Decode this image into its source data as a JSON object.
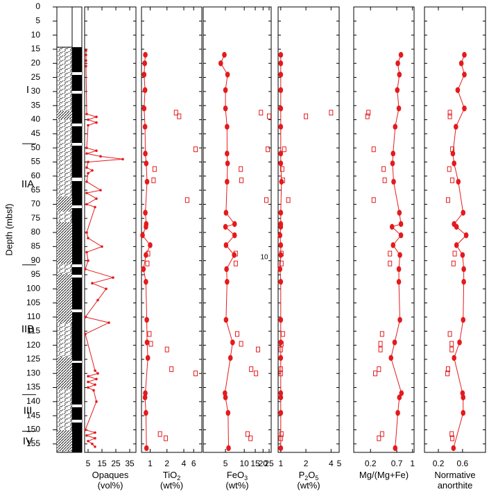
{
  "depth_axis": {
    "label": "Depth (mbsf)",
    "ylim": [
      0,
      158
    ],
    "yticks": [
      0,
      5,
      10,
      15,
      20,
      25,
      30,
      35,
      40,
      45,
      50,
      55,
      60,
      65,
      70,
      75,
      80,
      85,
      90,
      95,
      100,
      105,
      110,
      115,
      120,
      125,
      130,
      135,
      140,
      145,
      150,
      155
    ]
  },
  "units": [
    {
      "label": "I",
      "depth": 29.5
    },
    {
      "label": "IIA",
      "depth": 63
    },
    {
      "label": "IIB",
      "depth": 114.4
    },
    {
      "label": "III",
      "depth": 143.4
    },
    {
      "label": "IV",
      "depth": 154.2
    }
  ],
  "unit_boundaries": [
    48.5,
    91.5,
    137.5,
    150.5
  ],
  "annotation": "10",
  "chart_data": [
    {
      "type": "profile",
      "xlabel": [
        [
          {
            "text": "Opaques"
          }
        ],
        [
          {
            "text": "(vol%)"
          }
        ]
      ],
      "xlim": [
        2.5,
        39.5
      ],
      "xticks": [
        5,
        15,
        25,
        35
      ],
      "log": false,
      "series": [
        {
          "color": "#e41a1c",
          "marker": "dot",
          "connected": true,
          "depths": [
            15.5,
            17,
            19,
            21,
            38,
            39,
            40,
            41,
            42,
            50,
            51,
            52,
            53,
            54,
            55,
            57,
            58,
            59,
            62,
            65,
            66,
            68,
            70,
            71,
            80,
            82,
            85,
            87,
            90,
            93,
            96,
            98,
            100,
            104,
            110,
            112,
            116,
            129,
            130,
            131,
            132,
            133,
            134,
            135,
            136,
            140,
            150,
            151,
            152,
            153,
            154,
            155,
            156
          ],
          "values": [
            3.5,
            3.5,
            3.5,
            3.5,
            4,
            11,
            5,
            11,
            5,
            4,
            11,
            4,
            14,
            30,
            5,
            4,
            8,
            5,
            4,
            14,
            4,
            11,
            4,
            10,
            4,
            5,
            15,
            4,
            5,
            3,
            23,
            8,
            18,
            12,
            3,
            20,
            3,
            10,
            12,
            5,
            11,
            5,
            10,
            5,
            9,
            11,
            3,
            10,
            4,
            10,
            5,
            8,
            10
          ]
        }
      ]
    },
    {
      "type": "profile",
      "xlabel": [
        [
          {
            "text": "TiO"
          },
          {
            "text": "2",
            "sub": true
          }
        ],
        [
          {
            "text": "(wt%)"
          }
        ]
      ],
      "xlim": [
        0.7,
        8.4
      ],
      "xticks": [
        1,
        2,
        4,
        6
      ],
      "log": true,
      "series": [
        {
          "color": "#e41a1c",
          "marker": "circle",
          "connected": true,
          "depths": [
            17,
            20,
            24,
            29.5,
            36,
            42.5,
            52,
            55.5,
            62,
            73,
            77,
            78,
            81,
            84.5,
            88,
            93,
            97.5,
            111,
            119,
            124.5,
            137,
            138.5,
            144,
            156.5
          ],
          "values": [
            0.82,
            0.8,
            0.78,
            0.81,
            0.78,
            0.81,
            0.82,
            0.85,
            0.88,
            0.82,
            0.85,
            0.84,
            0.73,
            1.0,
            0.84,
            0.76,
            0.84,
            0.87,
            0.88,
            0.91,
            0.82,
            0.81,
            0.84,
            0.86
          ]
        },
        {
          "color": "#e41a1c",
          "marker": "square",
          "connected": false,
          "depths": [
            37.5,
            38.8,
            50.5,
            57.5,
            61.5,
            68.5,
            87.5,
            91,
            116,
            119.5,
            121.5,
            128.5,
            130,
            151.5,
            153
          ],
          "values": [
            2.9,
            3.3,
            6.5,
            1.2,
            1.15,
            4.6,
            0.92,
            0.89,
            0.97,
            1.03,
            2.0,
            2.4,
            6.5,
            1.5,
            1.9
          ]
        }
      ]
    },
    {
      "type": "profile",
      "xlabel": [
        [
          {
            "text": "FeO"
          },
          {
            "text": "3",
            "sub": true
          }
        ],
        [
          {
            "text": "(wt%)"
          }
        ]
      ],
      "xlim": [
        2.2,
        27
      ],
      "xticks": [
        5,
        10,
        15,
        20,
        25
      ],
      "log": true,
      "series": [
        {
          "color": "#e41a1c",
          "marker": "circle",
          "connected": true,
          "depths": [
            17,
            20,
            24,
            29.5,
            36,
            42.5,
            52,
            55.5,
            62,
            73,
            77,
            78,
            81,
            84.5,
            88,
            93,
            97.5,
            111,
            119,
            124.5,
            137,
            138.5,
            144,
            156.5
          ],
          "values": [
            4.8,
            4.2,
            5.4,
            5.0,
            5.0,
            5.3,
            5.3,
            5.4,
            5.3,
            5.1,
            7.0,
            5.0,
            7.0,
            5.1,
            6.9,
            5.2,
            5.3,
            5.1,
            6.5,
            6.0,
            4.9,
            5.0,
            5.5,
            5.6
          ]
        },
        {
          "color": "#e41a1c",
          "marker": "square",
          "connected": false,
          "depths": [
            37.5,
            38.8,
            50.5,
            57.5,
            61.5,
            68.5,
            87.5,
            91,
            116,
            119.5,
            121.5,
            128.5,
            130,
            151.5,
            153
          ],
          "values": [
            18.5,
            25,
            23.8,
            8.8,
            9.0,
            22.6,
            7.3,
            7.3,
            7.7,
            8.9,
            16.6,
            12.9,
            15.4,
            11.3,
            12.6
          ]
        }
      ]
    },
    {
      "type": "profile",
      "xlabel": [
        [
          {
            "text": "P"
          },
          {
            "text": "2",
            "sub": true
          },
          {
            "text": "O"
          },
          {
            "text": "5",
            "sub": true
          }
        ],
        [
          {
            "text": "(wt%)"
          }
        ]
      ],
      "xlim": [
        0.93,
        5.0
      ],
      "xticks": [
        1,
        2,
        4,
        5
      ],
      "log": true,
      "series": [
        {
          "color": "#e41a1c",
          "marker": "circle",
          "connected": true,
          "depths": [
            17,
            20,
            24,
            29.5,
            36,
            42.5,
            52,
            55.5,
            62,
            73,
            77,
            78,
            81,
            84.5,
            88,
            93,
            97.5,
            111,
            119,
            124.5,
            137,
            138.5,
            144,
            156.5
          ],
          "values": [
            1.0,
            1.0,
            1.0,
            1.0,
            1.0,
            1.0,
            1.0,
            1.0,
            1.02,
            1.0,
            1.0,
            1.0,
            0.98,
            1.0,
            1.0,
            0.98,
            1.0,
            1.0,
            1.0,
            1.0,
            1.0,
            1.0,
            1.0,
            1.0
          ]
        },
        {
          "color": "#e41a1c",
          "marker": "square",
          "connected": false,
          "depths": [
            37.5,
            38.8,
            50.5,
            57.5,
            61.5,
            68.5,
            87.5,
            91,
            116,
            119.5,
            121.5,
            128.5,
            130,
            151.5,
            153
          ],
          "values": [
            4.0,
            2.0,
            1.1,
            1.04,
            1.06,
            1.23,
            1.02,
            1.02,
            1.06,
            1.02,
            1.0,
            1.0,
            1.0,
            1.02,
            1.0
          ]
        }
      ]
    },
    {
      "type": "profile",
      "xlabel": [
        [
          {
            "text": "Mg/(Mg+Fe)"
          }
        ]
      ],
      "xlim": [
        -0.12,
        1.03
      ],
      "xticks": [
        0.2,
        0.7,
        1
      ],
      "log": false,
      "series": [
        {
          "color": "#e41a1c",
          "marker": "circle",
          "connected": true,
          "depths": [
            17,
            20,
            24,
            29.5,
            36,
            42.5,
            52,
            55.5,
            62,
            73,
            77,
            78,
            81,
            84.5,
            88,
            93,
            97.5,
            111,
            119,
            124.5,
            137,
            138.5,
            144,
            156.5
          ],
          "values": [
            0.78,
            0.72,
            0.75,
            0.71,
            0.74,
            0.67,
            0.63,
            0.62,
            0.64,
            0.75,
            0.78,
            0.61,
            0.78,
            0.63,
            0.76,
            0.74,
            0.74,
            0.76,
            0.66,
            0.59,
            0.79,
            0.75,
            0.72,
            0.67
          ]
        },
        {
          "color": "#e41a1c",
          "marker": "square",
          "connected": false,
          "depths": [
            37.5,
            38.8,
            50.5,
            57.5,
            61.5,
            68.5,
            87.5,
            91,
            116,
            119.5,
            121.5,
            128.5,
            130,
            151.5,
            153
          ],
          "values": [
            0.16,
            0.14,
            0.26,
            0.45,
            0.47,
            0.26,
            0.57,
            0.57,
            0.42,
            0.39,
            0.39,
            0.36,
            0.29,
            0.42,
            0.36
          ]
        }
      ]
    },
    {
      "type": "profile",
      "xlabel": [
        [
          {
            "text": "Normative"
          }
        ],
        [
          {
            "text": "anorthite"
          }
        ]
      ],
      "xlim": [
        -0.03,
        0.98
      ],
      "xticks": [
        0.2,
        0.6
      ],
      "log": false,
      "series": [
        {
          "color": "#e41a1c",
          "marker": "circle",
          "connected": true,
          "depths": [
            17,
            20,
            24,
            29.5,
            36,
            42.5,
            52,
            55.5,
            62,
            73,
            77,
            78,
            81,
            84.5,
            88,
            93,
            97.5,
            111,
            119,
            124.5,
            137,
            138.5,
            144,
            156.5
          ],
          "values": [
            0.63,
            0.58,
            0.63,
            0.52,
            0.63,
            0.49,
            0.44,
            0.46,
            0.53,
            0.61,
            0.46,
            0.5,
            0.66,
            0.5,
            0.6,
            0.62,
            0.62,
            0.61,
            0.55,
            0.46,
            0.6,
            0.61,
            0.61,
            0.45
          ]
        },
        {
          "color": "#e41a1c",
          "marker": "square",
          "connected": false,
          "depths": [
            37.5,
            38.8,
            50.5,
            57.5,
            61.5,
            68.5,
            87.5,
            91,
            116,
            119.5,
            121.5,
            128.5,
            130,
            151.5,
            153
          ],
          "values": [
            0.39,
            0.39,
            0.43,
            0.38,
            0.43,
            0.36,
            0.47,
            0.45,
            0.39,
            0.42,
            0.42,
            0.36,
            0.35,
            0.42,
            0.43
          ]
        }
      ]
    }
  ]
}
